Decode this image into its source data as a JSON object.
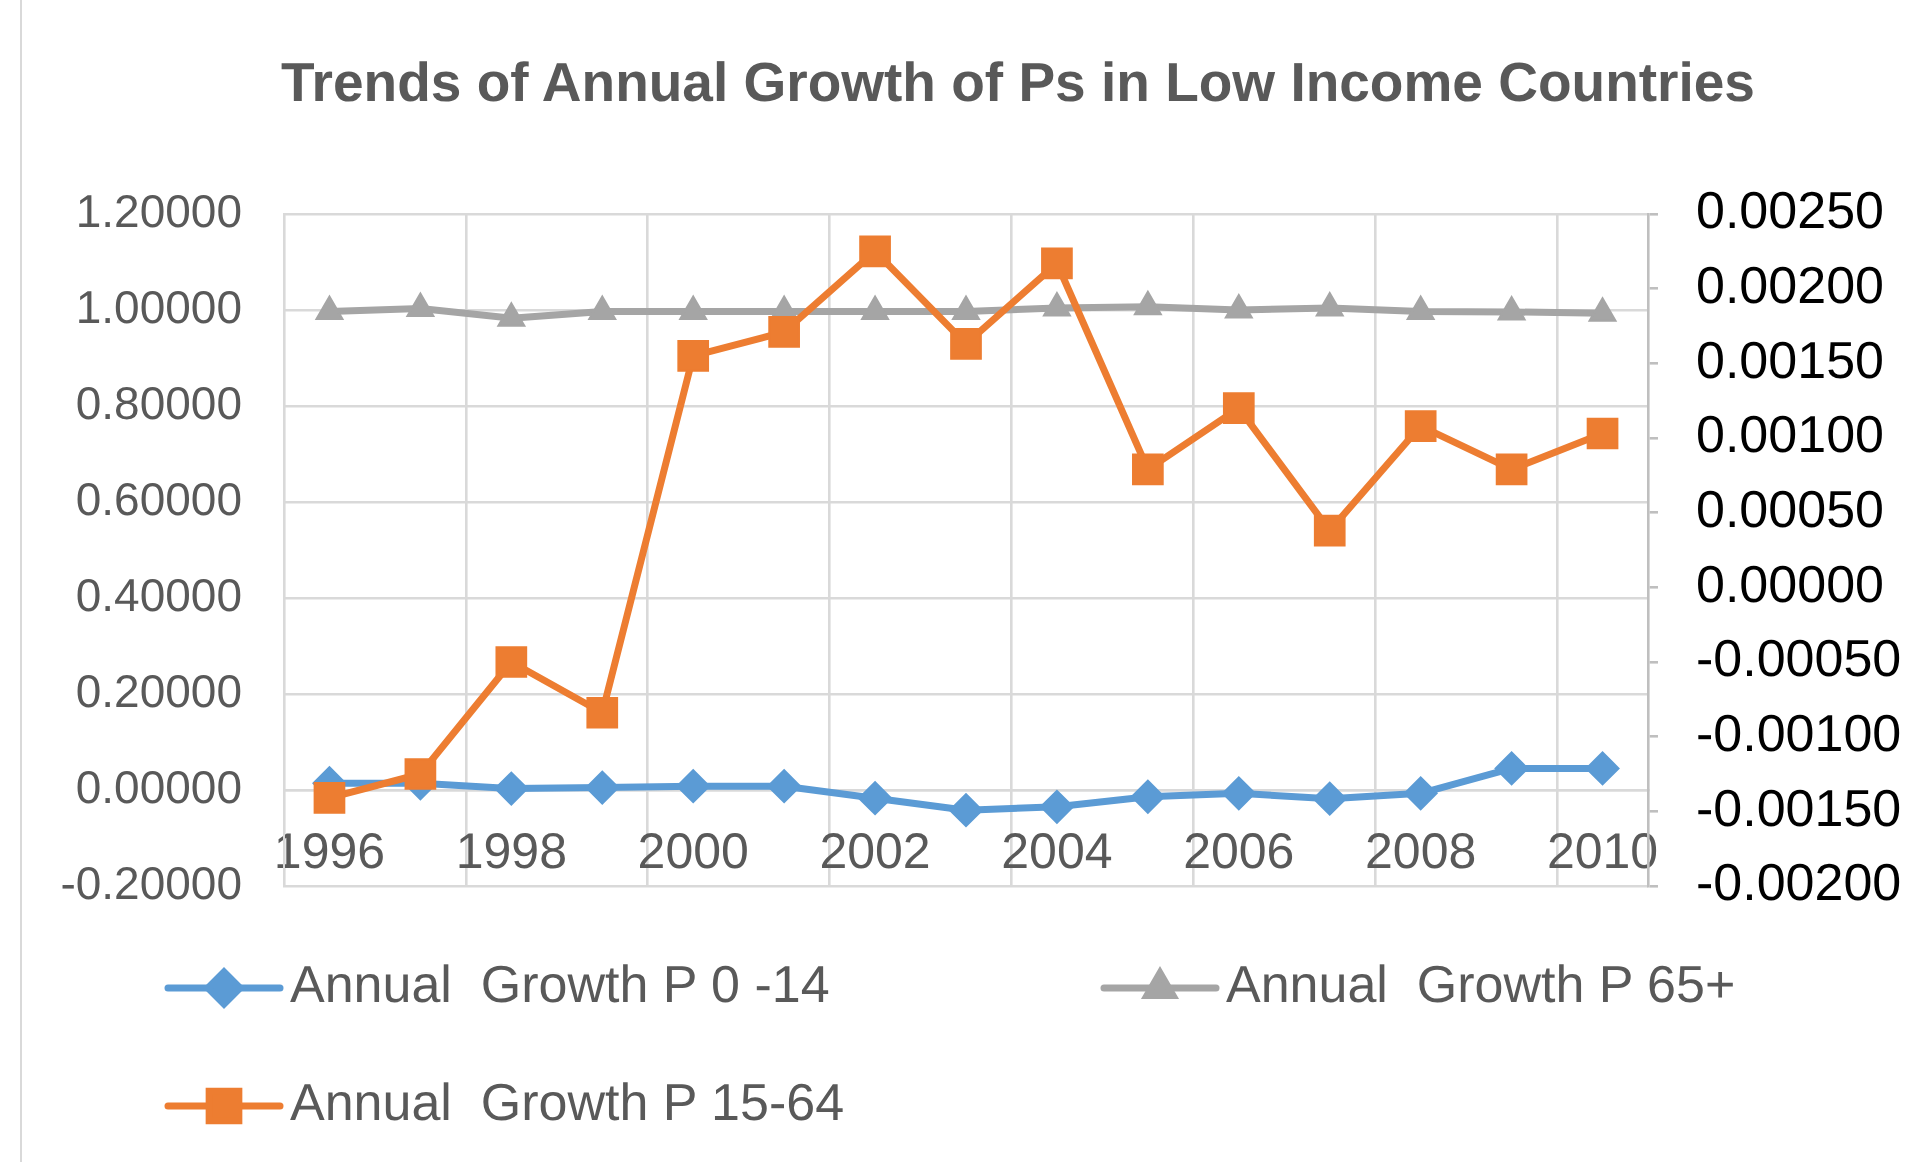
{
  "chart_data": {
    "type": "line",
    "title": "Trends of Annual Growth of Ps in Low Income Countries",
    "categories": [
      "1996",
      null,
      "1998",
      null,
      "2000",
      null,
      "2002",
      null,
      "2004",
      null,
      "2006",
      null,
      "2008",
      null,
      "2010"
    ],
    "series": [
      {
        "name": "Annual  Growth P 0 -14",
        "color": "#5b9bd5",
        "marker": "diamond",
        "values": [
          0.014,
          0.014,
          0.003,
          0.005,
          0.008,
          0.008,
          -0.017,
          -0.042,
          -0.035,
          -0.014,
          -0.007,
          -0.018,
          -0.007,
          0.045,
          0.045
        ]
      },
      {
        "name": "Annual  Growth P 65+",
        "color": "#a5a5a5",
        "marker": "triangle",
        "values": [
          0.997,
          1.003,
          0.983,
          0.997,
          0.997,
          0.997,
          0.997,
          0.997,
          1.004,
          1.007,
          1.0,
          1.004,
          0.997,
          0.996,
          0.993
        ]
      },
      {
        "name": "Annual  Growth P 15-64",
        "color": "#ed7d31",
        "marker": "square",
        "axis": "y2",
        "values": [
          -0.00141,
          -0.00125,
          -0.0005,
          -0.00084,
          0.00155,
          0.00171,
          0.00225,
          0.00163,
          0.00217,
          0.00079,
          0.0012,
          0.00038,
          0.00108,
          0.00079,
          0.00103
        ]
      }
    ],
    "ylim": [
      -0.2,
      1.2
    ],
    "yticks": [
      {
        "value": -0.2,
        "label": "-0.20000"
      },
      {
        "value": 0,
        "label": "0.00000"
      },
      {
        "value": 0.2,
        "label": "0.20000"
      },
      {
        "value": 0.4,
        "label": "0.40000"
      },
      {
        "value": 0.6,
        "label": "0.60000"
      },
      {
        "value": 0.8,
        "label": "0.80000"
      },
      {
        "value": 1.0,
        "label": "1.00000"
      },
      {
        "value": 1.2,
        "label": "1.20000"
      }
    ],
    "y2lim": [
      -0.002,
      0.0025
    ],
    "y2ticks": [
      {
        "value": -0.002,
        "label": "-0.00200"
      },
      {
        "value": -0.0015,
        "label": "-0.00150"
      },
      {
        "value": -0.001,
        "label": "-0.00100"
      },
      {
        "value": -0.0005,
        "label": "-0.00050"
      },
      {
        "value": 0,
        "label": "0.00000"
      },
      {
        "value": 0.0005,
        "label": "0.00050"
      },
      {
        "value": 0.001,
        "label": "0.00100"
      },
      {
        "value": 0.0015,
        "label": "0.00150"
      },
      {
        "value": 0.002,
        "label": "0.00200"
      },
      {
        "value": 0.0025,
        "label": "0.00250"
      }
    ],
    "grid": true,
    "legend": "bottom",
    "line_style": "solid"
  }
}
